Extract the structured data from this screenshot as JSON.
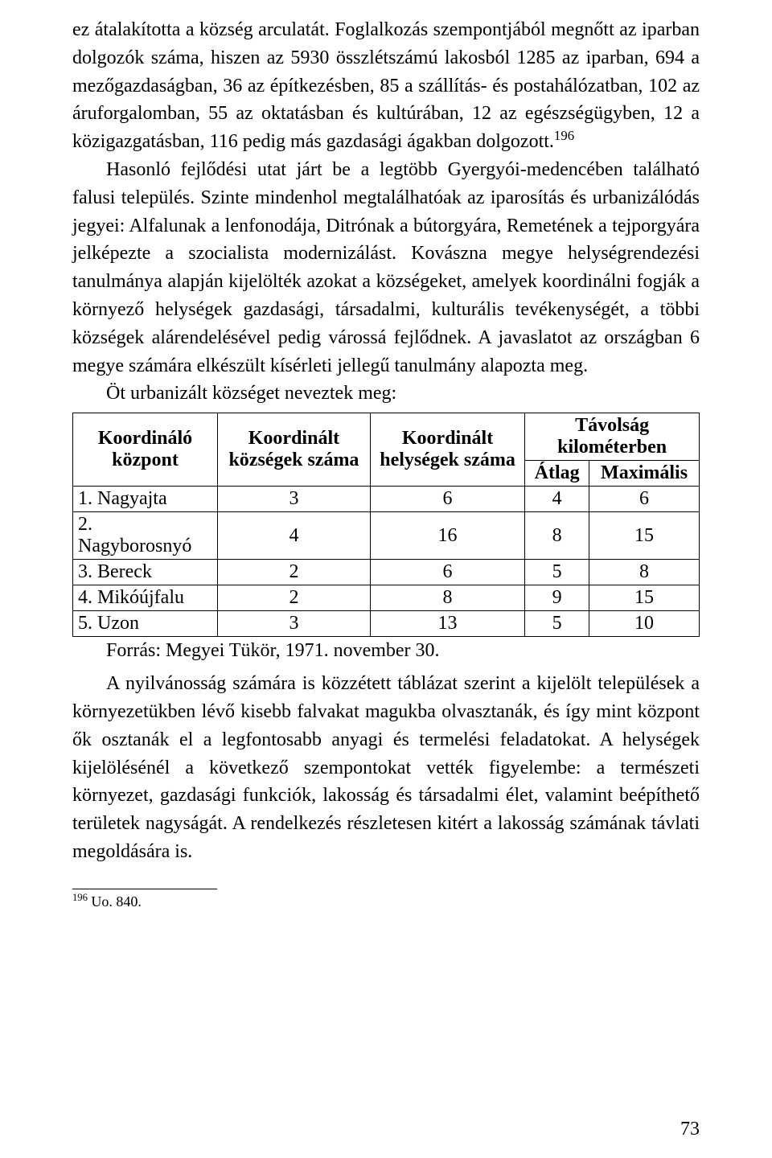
{
  "paragraphs": {
    "p1a": "ez átalakította a község arculatát.",
    "p1b": " Foglalkozás szempontjából megnőtt az iparban dolgozók száma, hiszen az 5930 összlétszámú lakosból 1285 az iparban, 694 a mezőgazdaságban, 36 az építkezésben, 85 a szállítás- és postahálózat­ban, 102 az áruforgalomban, 55 az oktatásban és kultúrában, 12 az egészség­ügyben, 12 a közigazgatásban, 116 pedig más gazdasági ágakban dolgozott.",
    "fn196": "196",
    "p2": "Hasonló fejlődési utat járt be a legtöbb Gyergyói-medencében található falusi település. Szinte mindenhol megtalálhatóak az iparosítás és urbanizá­lódás jegyei: Alfalunak a lenfonodája, Ditrónak a bútorgyára, Remetének a tejporgyára jelképezte a szocialista modernizálást. Kovászna megye hely­ségrendezési tanulmánya alapján kijelölték azokat a községeket, amelyek koordinálni fogják a környező helységek gazdasági, társadalmi, kulturális tevékenységét, a többi községek alárendelésével pedig várossá fejlődnek. A javaslatot az országban 6 megye számára elkészült kísérleti jellegű tanul­mány alapozta meg.",
    "p3": "Öt urbanizált községet neveztek meg:"
  },
  "table": {
    "headers": {
      "h1": "Koordináló központ",
      "h2": "Koordinált községek száma",
      "h3": "Koordinált helységek száma",
      "h4": "Távolság kilométerben",
      "h4a": "Átlag",
      "h4b": "Maximális"
    },
    "rows": [
      {
        "name": "1. Nagyajta",
        "c1": "3",
        "c2": "6",
        "c3": "4",
        "c4": "6"
      },
      {
        "name": "2. Nagyborosnyó",
        "c1": "4",
        "c2": "16",
        "c3": "8",
        "c4": "15"
      },
      {
        "name": "3. Bereck",
        "c1": "2",
        "c2": "6",
        "c3": "5",
        "c4": "8"
      },
      {
        "name": "4. Mikóújfalu",
        "c1": "2",
        "c2": "8",
        "c3": "9",
        "c4": "15"
      },
      {
        "name": "5. Uzon",
        "c1": "3",
        "c2": "13",
        "c3": "5",
        "c4": "10"
      }
    ],
    "source": "Forrás: Megyei Tükör, 1971. november 30."
  },
  "after": {
    "p4": "A nyilvánosság számára is közzétett táblázat szerint a kijelölt települé­sek a környezetükben lévő kisebb falvakat magukba olvasztanák, és így mint központ ők osztanák el a legfontosabb anyagi és termelési feladatokat. A helységek kijelölésénél a következő szempontokat vették figyelembe: a természeti környezet, gazdasági funkciók, lakosság és társadalmi élet, vala­mint beépíthető területek nagyságát. A rendelkezés részletesen kitért a la­kosság számának távlati megoldására is."
  },
  "footnote": {
    "marker": "196",
    "text": " Uo. 840."
  },
  "page_number": "73"
}
